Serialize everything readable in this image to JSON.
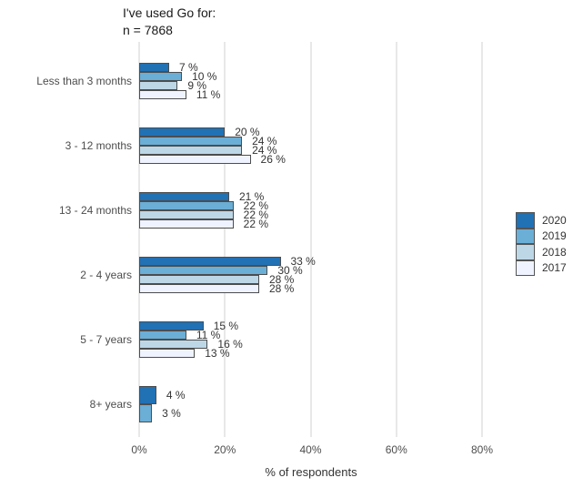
{
  "chart_data": {
    "type": "bar",
    "orientation": "horizontal",
    "title": "I've used Go for:",
    "subtitle": "n = 7868",
    "xlabel": "% of respondents",
    "xlim": [
      0,
      87
    ],
    "grid": "vertical-major-only",
    "x_ticks": [
      {
        "label": "0%",
        "value": 0
      },
      {
        "label": "20%",
        "value": 20
      },
      {
        "label": "40%",
        "value": 40
      },
      {
        "label": "60%",
        "value": 60
      },
      {
        "label": "80%",
        "value": 80
      }
    ],
    "categories": [
      "Less than 3 months",
      "3 - 12 months",
      "13 - 24 months",
      "2 - 4 years",
      "5 - 7 years",
      "8+ years"
    ],
    "series": [
      {
        "name": "2020",
        "color": "#2171B5",
        "values": [
          7,
          20,
          21,
          33,
          15,
          4
        ]
      },
      {
        "name": "2019",
        "color": "#6BAED6",
        "values": [
          10,
          24,
          22,
          30,
          11,
          3
        ]
      },
      {
        "name": "2018",
        "color": "#BDD7E7",
        "values": [
          9,
          24,
          22,
          28,
          16,
          null
        ]
      },
      {
        "name": "2017",
        "color": "#EFF3FF",
        "values": [
          11,
          26,
          22,
          28,
          13,
          null
        ]
      }
    ],
    "value_label_suffix": " %",
    "bar_border_color": "#4D4D4D",
    "gridline_color": "#E8E8E8",
    "legend": {
      "position": "right",
      "entries": [
        "2020",
        "2019",
        "2018",
        "2017"
      ]
    }
  }
}
